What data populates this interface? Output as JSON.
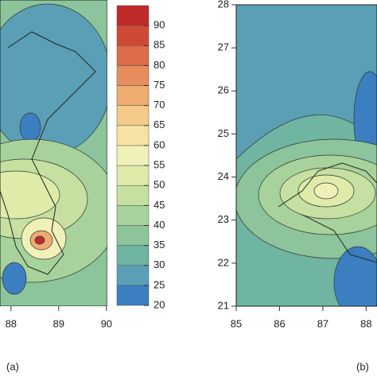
{
  "colorbar": {
    "ticks": [
      20,
      25,
      30,
      35,
      40,
      45,
      50,
      55,
      60,
      65,
      70,
      75,
      80,
      85,
      90
    ],
    "clim": [
      20,
      95
    ],
    "colors": [
      "#3b7fc1",
      "#5a9fb5",
      "#70b4a2",
      "#8cc49b",
      "#a8d29b",
      "#c5e0a0",
      "#dfeba9",
      "#f0f1b9",
      "#f6e2a3",
      "#f3ca88",
      "#eeac71",
      "#e68d5b",
      "#dc6c47",
      "#cf4a36",
      "#bf2b2a"
    ]
  },
  "panel_a": {
    "label": "(a)",
    "xticks": [
      88,
      89,
      90
    ],
    "xlim": [
      87.77,
      90.02
    ]
  },
  "panel_b": {
    "label": "(b)",
    "xticks": [
      85,
      86,
      87,
      88
    ],
    "xlim": [
      85,
      88.25
    ],
    "yticks": [
      21,
      22,
      23,
      24,
      25,
      26,
      27,
      28
    ],
    "ylim": [
      21,
      28
    ]
  }
}
